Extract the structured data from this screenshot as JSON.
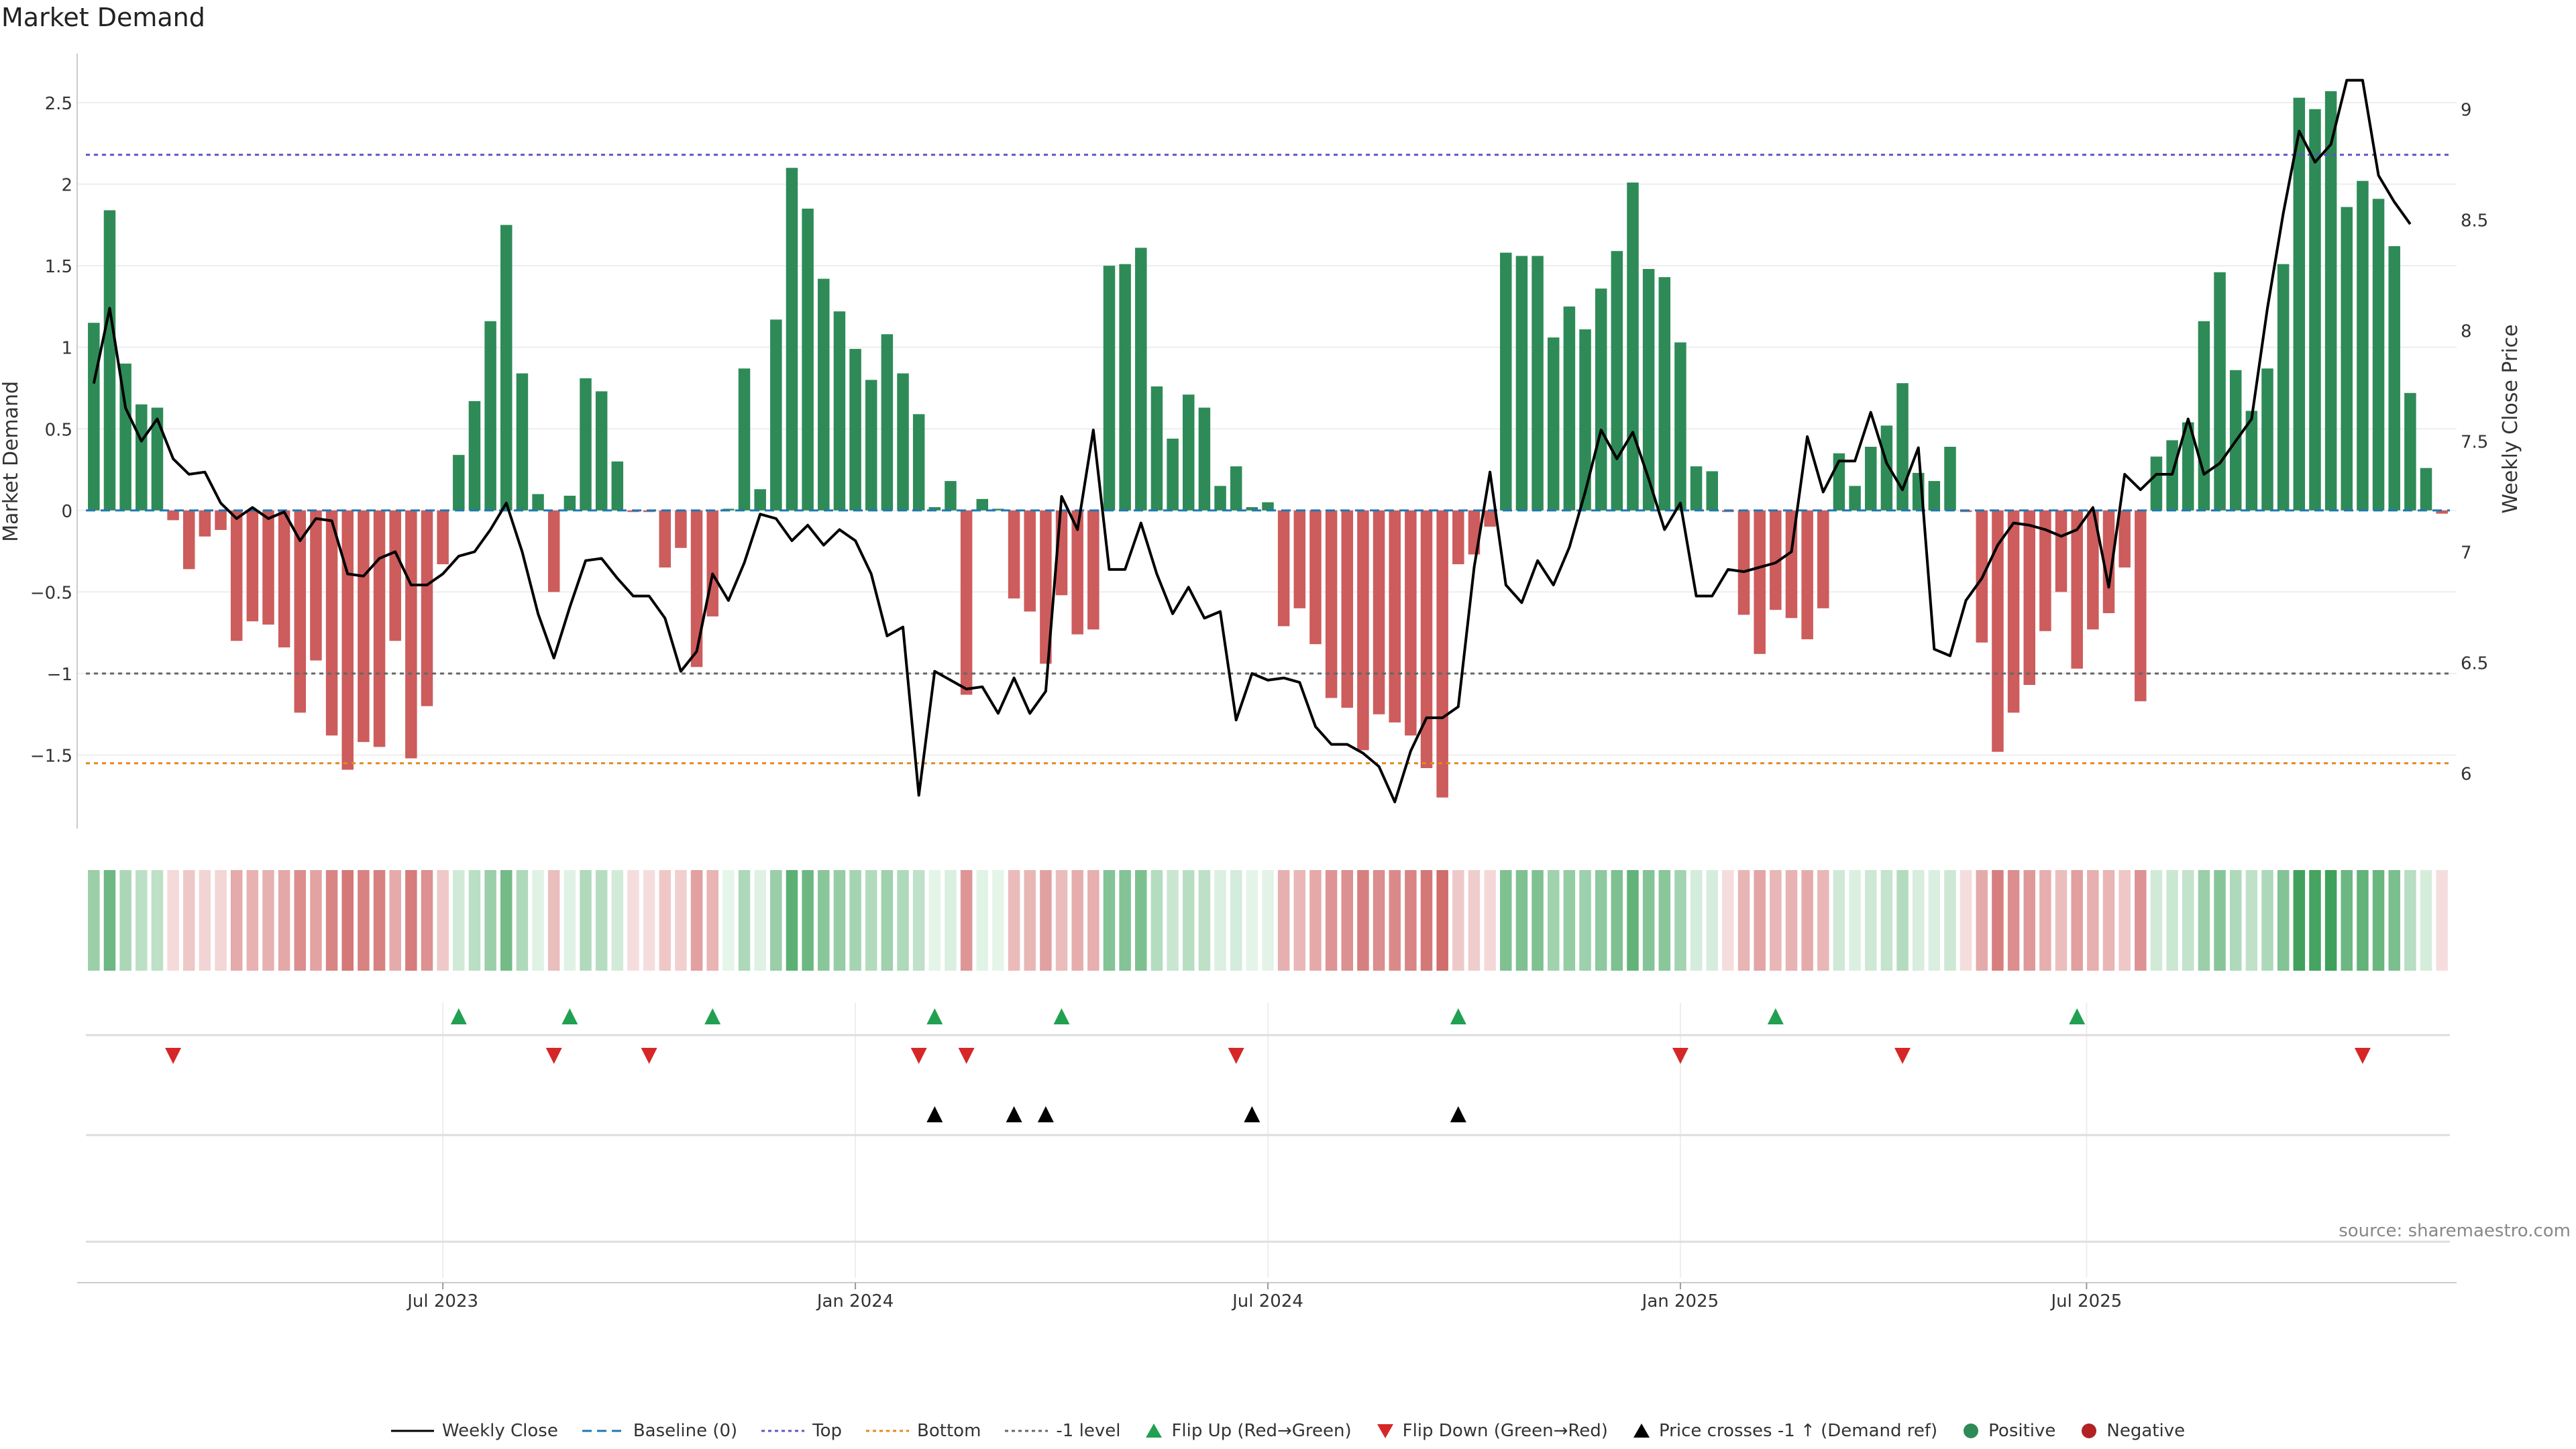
{
  "title": "Market Demand",
  "source": "source: sharemaestro.com",
  "colors": {
    "positive": "#2e8b57",
    "negative": "#cd5c5c",
    "top_line": "#5b55c8",
    "bottom_line": "#e08a1e",
    "minus1_line": "#666666",
    "baseline": "#1f77b4",
    "flip_up": "#22a052",
    "flip_down": "#d62728",
    "price_cross": "#000000",
    "price_line": "#000000"
  },
  "legend": [
    {
      "label": "Weekly Close",
      "symbol": "line-solid",
      "color": "#000000"
    },
    {
      "label": "Baseline (0)",
      "symbol": "line-dash",
      "color": "#1f77b4"
    },
    {
      "label": "Top",
      "symbol": "line-dot",
      "color": "#5b55c8"
    },
    {
      "label": "Bottom",
      "symbol": "line-dot",
      "color": "#e08a1e"
    },
    {
      "label": "-1 level",
      "symbol": "line-dot",
      "color": "#666666"
    },
    {
      "label": "Flip Up (Red→Green)",
      "symbol": "triangle-up",
      "color": "#22a052"
    },
    {
      "label": "Flip Down (Green→Red)",
      "symbol": "triangle-down",
      "color": "#d62728"
    },
    {
      "label": "Price crosses -1 ↑ (Demand ref)",
      "symbol": "triangle-up",
      "color": "#000000"
    },
    {
      "label": "Positive",
      "symbol": "circle",
      "color": "#2e8b57"
    },
    {
      "label": "Negative",
      "symbol": "circle",
      "color": "#b22222"
    }
  ],
  "chart_data": {
    "type": "bar",
    "title": "Market Demand",
    "ylabel": "Market Demand",
    "y2label": "Weekly Close Price",
    "ylim": [
      -1.95,
      2.8
    ],
    "y2lim": [
      5.75,
      9.25
    ],
    "yticks": [
      -1.5,
      -1,
      -0.5,
      0,
      0.5,
      1,
      1.5,
      2,
      2.5
    ],
    "ytick_labels": [
      "−1.5",
      "−1",
      "−0.5",
      "0",
      "0.5",
      "1",
      "1.5",
      "2",
      "2.5"
    ],
    "y2ticks": [
      6,
      6.5,
      7,
      7.5,
      8,
      8.5,
      9
    ],
    "y2tick_labels": [
      "6",
      "6.5",
      "7",
      "7.5",
      "8",
      "8.5",
      "9"
    ],
    "x_ticks": [
      {
        "week": 22,
        "label": "Jul 2023"
      },
      {
        "week": 48,
        "label": "Jan 2024"
      },
      {
        "week": 74,
        "label": "Jul 2024"
      },
      {
        "week": 100,
        "label": "Jan 2025"
      },
      {
        "week": 125.6,
        "label": "Jul 2025"
      }
    ],
    "reference_lines": {
      "top": 2.18,
      "bottom": -1.55,
      "minus1": -1.0,
      "baseline": 0
    },
    "demand": [
      1.15,
      1.84,
      0.9,
      0.65,
      0.63,
      -0.06,
      -0.36,
      -0.16,
      -0.12,
      -0.8,
      -0.68,
      -0.7,
      -0.84,
      -1.24,
      -0.92,
      -1.38,
      -1.59,
      -1.42,
      -1.45,
      -0.8,
      -1.52,
      -1.2,
      -0.33,
      0.34,
      0.67,
      1.16,
      1.75,
      0.84,
      0.1,
      -0.5,
      0.09,
      0.81,
      0.73,
      0.3,
      -0.01,
      -0.01,
      -0.35,
      -0.23,
      -0.96,
      -0.65,
      0.01,
      0.87,
      0.13,
      1.17,
      2.1,
      1.85,
      1.42,
      1.22,
      0.99,
      0.8,
      1.08,
      0.84,
      0.59,
      0.02,
      0.18,
      -1.13,
      0.07,
      0.01,
      -0.54,
      -0.62,
      -0.94,
      -0.52,
      -0.76,
      -0.73,
      1.5,
      1.51,
      1.61,
      0.76,
      0.44,
      0.71,
      0.63,
      0.15,
      0.27,
      0.02,
      0.05,
      -0.71,
      -0.6,
      -0.82,
      -1.15,
      -1.21,
      -1.47,
      -1.25,
      -1.3,
      -1.38,
      -1.58,
      -1.76,
      -0.33,
      -0.27,
      -0.1,
      1.58,
      1.56,
      1.56,
      1.06,
      1.25,
      1.11,
      1.36,
      1.59,
      2.01,
      1.48,
      1.43,
      1.03,
      0.27,
      0.24,
      -0.01,
      -0.64,
      -0.88,
      -0.61,
      -0.66,
      -0.79,
      -0.6,
      0.35,
      0.15,
      0.39,
      0.52,
      0.78,
      0.23,
      0.18,
      0.39,
      -0.01,
      -0.81,
      -1.48,
      -1.24,
      -1.07,
      -0.74,
      -0.5,
      -0.97,
      -0.73,
      -0.63,
      -0.35,
      -1.17,
      0.33,
      0.43,
      0.54,
      1.16,
      1.46,
      0.86,
      0.61,
      0.87,
      1.51,
      2.53,
      2.46,
      2.57,
      1.86,
      2.02,
      1.91,
      1.62,
      0.72,
      0.26,
      -0.02
    ],
    "weekly_close": [
      7.76,
      8.1,
      7.65,
      7.5,
      7.6,
      7.42,
      7.35,
      7.36,
      7.22,
      7.15,
      7.2,
      7.15,
      7.18,
      7.05,
      7.15,
      7.14,
      6.9,
      6.89,
      6.97,
      7.0,
      6.85,
      6.85,
      6.9,
      6.98,
      7.0,
      7.1,
      7.22,
      7.0,
      6.72,
      6.52,
      6.75,
      6.96,
      6.97,
      6.88,
      6.8,
      6.8,
      6.7,
      6.46,
      6.55,
      6.9,
      6.78,
      6.95,
      7.17,
      7.15,
      7.05,
      7.12,
      7.03,
      7.1,
      7.05,
      6.9,
      6.62,
      6.66,
      5.9,
      6.46,
      6.42,
      6.38,
      6.39,
      6.27,
      6.43,
      6.27,
      6.37,
      7.25,
      7.1,
      7.55,
      6.92,
      6.92,
      7.13,
      6.9,
      6.72,
      6.84,
      6.7,
      6.73,
      6.24,
      6.45,
      6.42,
      6.43,
      6.41,
      6.21,
      6.13,
      6.13,
      6.09,
      6.03,
      5.87,
      6.1,
      6.25,
      6.25,
      6.3,
      6.93,
      7.36,
      6.85,
      6.77,
      6.96,
      6.85,
      7.02,
      7.27,
      7.55,
      7.42,
      7.54,
      7.33,
      7.1,
      7.22,
      6.8,
      6.8,
      6.92,
      6.91,
      6.93,
      6.95,
      7.0,
      7.52,
      7.27,
      7.41,
      7.41,
      7.63,
      7.4,
      7.28,
      7.47,
      6.56,
      6.53,
      6.78,
      6.88,
      7.03,
      7.13,
      7.12,
      7.1,
      7.07,
      7.1,
      7.2,
      6.84,
      7.35,
      7.28,
      7.35,
      7.35,
      7.6,
      7.35,
      7.4,
      7.5,
      7.6,
      8.1,
      8.53,
      8.9,
      8.76,
      8.84,
      9.13,
      9.13,
      8.7,
      8.58,
      8.48
    ],
    "flip_up_weeks": [
      23,
      30,
      39,
      53,
      61,
      86,
      106,
      125
    ],
    "flip_down_weeks": [
      5,
      29,
      35,
      52,
      55,
      72,
      100,
      114,
      143
    ],
    "price_cross_weeks": [
      53,
      58,
      60,
      73,
      86
    ]
  }
}
